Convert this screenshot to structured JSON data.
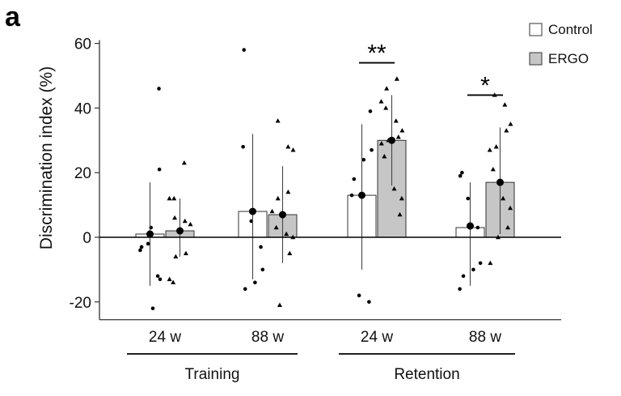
{
  "panel_label": "a",
  "chart_data": {
    "type": "bar",
    "ylabel": "Discrimination index (%)",
    "ylim": [
      -25,
      60
    ],
    "yticks": [
      -20,
      0,
      20,
      40,
      60
    ],
    "categories": [
      "24 w",
      "88 w",
      "24 w",
      "88 w"
    ],
    "groups": [
      {
        "label": "Training",
        "categories": [
          0,
          1
        ]
      },
      {
        "label": "Retention",
        "categories": [
          2,
          3
        ]
      }
    ],
    "legend_position": "top-right",
    "series": [
      {
        "name": "Control",
        "color": "#ffffff",
        "point_marker": "circle",
        "values": [
          1,
          8,
          13,
          3
        ],
        "means": [
          1,
          8,
          13,
          3.5
        ],
        "error_low": [
          -15,
          -13,
          -10,
          -15
        ],
        "error_high": [
          17,
          32,
          35,
          17
        ],
        "points": [
          [
            46,
            21,
            3,
            -3,
            -4,
            -2,
            -12,
            -13,
            -22
          ],
          [
            58,
            28,
            5,
            -3,
            -10,
            -14,
            -16
          ],
          [
            39,
            27,
            24,
            18,
            13,
            -18,
            -20
          ],
          [
            20,
            19,
            12,
            3,
            -8,
            -10,
            -12,
            -16
          ]
        ]
      },
      {
        "name": "ERGO",
        "color": "#c6c6c6",
        "point_marker": "triangle",
        "values": [
          2,
          7,
          30,
          17
        ],
        "means": [
          2,
          7,
          30,
          17
        ],
        "error_low": [
          -6,
          -8,
          16,
          1
        ],
        "error_high": [
          12,
          22,
          44,
          34
        ],
        "points": [
          [
            23,
            12,
            12,
            6,
            5,
            4,
            -5,
            -6,
            -13,
            -14
          ],
          [
            36,
            28,
            27,
            14,
            12,
            8,
            3,
            1,
            0,
            -5,
            -21
          ],
          [
            49,
            46,
            42,
            40,
            36,
            33,
            31,
            30,
            29,
            25,
            15,
            12,
            7
          ],
          [
            44,
            41,
            35,
            33,
            28,
            27,
            21,
            12,
            9,
            3,
            0,
            -8
          ]
        ]
      }
    ],
    "significance": [
      {
        "category": 2,
        "label": "**"
      },
      {
        "category": 3,
        "label": "*"
      }
    ]
  }
}
